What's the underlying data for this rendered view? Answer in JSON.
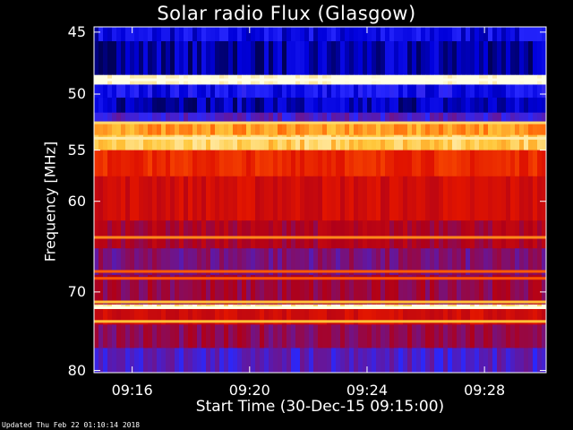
{
  "chart_data": {
    "type": "heatmap",
    "title": "Solar radio Flux (Glasgow)",
    "xlabel": "Start Time (30-Dec-15 09:15:00)",
    "ylabel": "Frequency [MHz]",
    "x_tick_labels": [
      "09:16",
      "09:20",
      "09:24",
      "09:28"
    ],
    "x_tick_minutes": [
      1,
      5,
      9,
      13
    ],
    "x_range_minutes": [
      -0.3,
      15.1
    ],
    "y_ticks": [
      45,
      50,
      55,
      60,
      70,
      80
    ],
    "y_scale": "log",
    "y_range": [
      44.6,
      80.3
    ],
    "grid": false,
    "colormap": "blue-red-yellow-white",
    "bands": [
      {
        "freq": [
          44.6,
          45.7
        ],
        "level": 0.1
      },
      {
        "freq": [
          45.7,
          48.4
        ],
        "level": 0.05
      },
      {
        "freq": [
          48.4,
          49.2
        ],
        "level": 1.0
      },
      {
        "freq": [
          49.2,
          50.3
        ],
        "level": 0.12
      },
      {
        "freq": [
          50.3,
          51.6
        ],
        "level": 0.06
      },
      {
        "freq": [
          51.6,
          52.5
        ],
        "level": 0.22
      },
      {
        "freq": [
          52.5,
          53.6
        ],
        "level": 0.8
      },
      {
        "freq": [
          53.6,
          55.0
        ],
        "level": 0.88
      },
      {
        "freq": [
          55.0,
          57.5
        ],
        "level": 0.6
      },
      {
        "freq": [
          57.5,
          62.0
        ],
        "level": 0.5
      },
      {
        "freq": [
          62.0,
          65.0
        ],
        "level": 0.4
      },
      {
        "freq": [
          65.0,
          68.0
        ],
        "level": 0.3
      },
      {
        "freq": [
          68.0,
          71.5
        ],
        "level": 0.36
      },
      {
        "freq": [
          71.5,
          72.0
        ],
        "level": 0.95
      },
      {
        "freq": [
          72.0,
          74.0
        ],
        "level": 0.5
      },
      {
        "freq": [
          74.0,
          77.0
        ],
        "level": 0.34
      },
      {
        "freq": [
          77.0,
          80.3
        ],
        "level": 0.22
      }
    ],
    "lines": [
      {
        "freq": 48.8,
        "level": 1.0
      },
      {
        "freq": 52.5,
        "level": 0.9
      },
      {
        "freq": 53.9,
        "level": 0.95
      },
      {
        "freq": 63.8,
        "level": 0.78
      },
      {
        "freq": 67.6,
        "level": 0.72
      },
      {
        "freq": 68.4,
        "level": 0.7
      },
      {
        "freq": 71.2,
        "level": 0.85
      },
      {
        "freq": 71.9,
        "level": 1.0
      },
      {
        "freq": 73.6,
        "level": 0.85
      }
    ]
  },
  "footer": "Updated Thu Feb 22 01:10:14 2018"
}
